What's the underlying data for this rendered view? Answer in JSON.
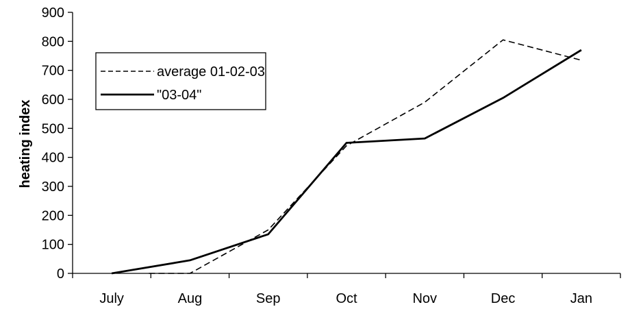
{
  "chart_data": {
    "type": "line",
    "title": "",
    "xlabel": "",
    "ylabel": "heating index",
    "categories": [
      "July",
      "Aug",
      "Sep",
      "Oct",
      "Nov",
      "Dec",
      "Jan"
    ],
    "ylim": [
      0,
      900
    ],
    "yticks": [
      "0",
      "100",
      "200",
      "300",
      "400",
      "500",
      "600",
      "700",
      "800",
      "900"
    ],
    "grid": false,
    "legend_position": "top-left",
    "series": [
      {
        "name": "average 01-02-03",
        "style": "dashed",
        "color": "#000000",
        "values": [
          0,
          0,
          150,
          440,
          590,
          805,
          735
        ]
      },
      {
        "name": "\"03-04\"",
        "style": "solid",
        "color": "#000000",
        "values": [
          0,
          45,
          135,
          450,
          465,
          605,
          770
        ]
      }
    ]
  }
}
